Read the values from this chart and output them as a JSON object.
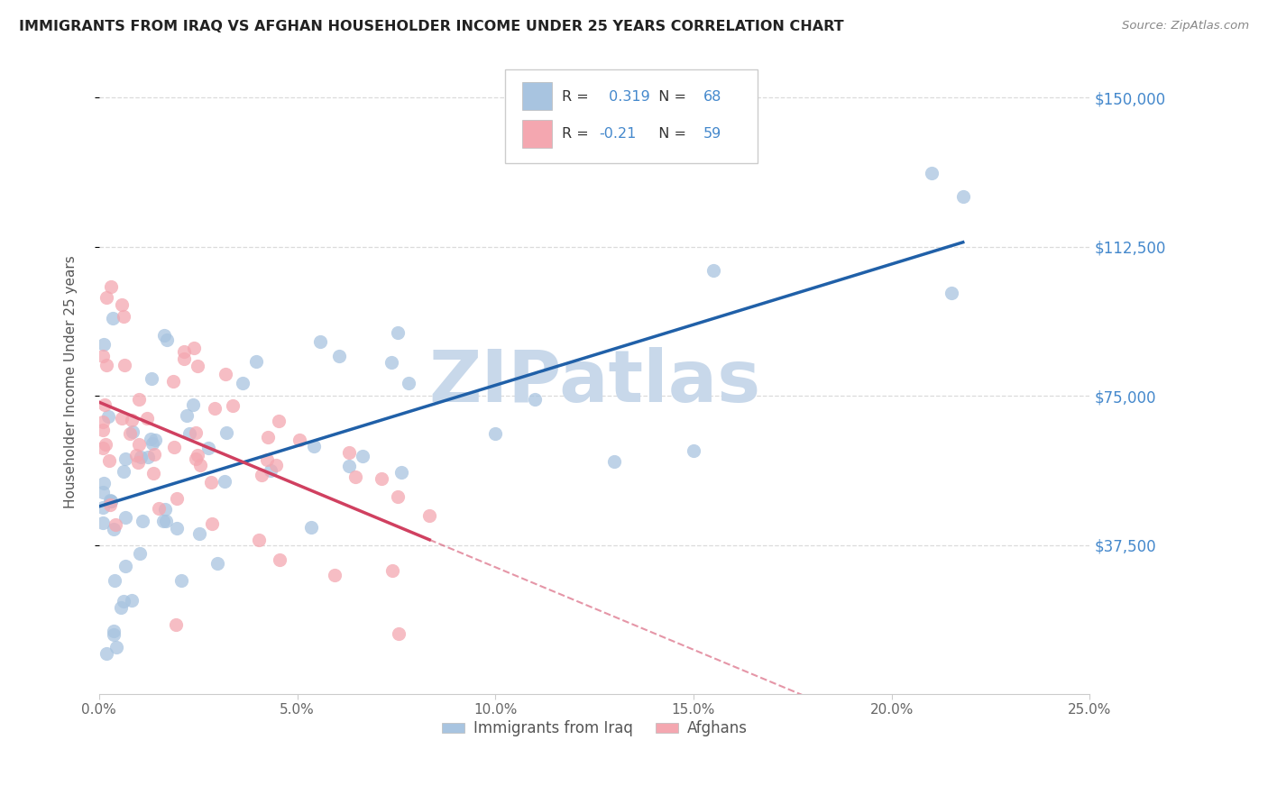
{
  "title": "IMMIGRANTS FROM IRAQ VS AFGHAN HOUSEHOLDER INCOME UNDER 25 YEARS CORRELATION CHART",
  "source": "Source: ZipAtlas.com",
  "ylabel": "Householder Income Under 25 years",
  "xlabel_ticks": [
    "0.0%",
    "5.0%",
    "10.0%",
    "15.0%",
    "20.0%",
    "25.0%"
  ],
  "xlabel_vals": [
    0.0,
    0.05,
    0.1,
    0.15,
    0.2,
    0.25
  ],
  "ylabel_ticks": [
    "$37,500",
    "$75,000",
    "$112,500",
    "$150,000"
  ],
  "ylabel_vals": [
    37500,
    75000,
    112500,
    150000
  ],
  "xlim": [
    0.0,
    0.25
  ],
  "ylim": [
    0,
    157000
  ],
  "iraq_R": 0.319,
  "iraq_N": 68,
  "afghan_R": -0.21,
  "afghan_N": 59,
  "iraq_color": "#a8c4e0",
  "afghan_color": "#f4a7b0",
  "iraq_line_color": "#2060a8",
  "afghan_line_color": "#d04060",
  "watermark_text": "ZIPatlas",
  "watermark_color": "#c8d8ea",
  "background_color": "#ffffff",
  "grid_color": "#d8d8d8"
}
